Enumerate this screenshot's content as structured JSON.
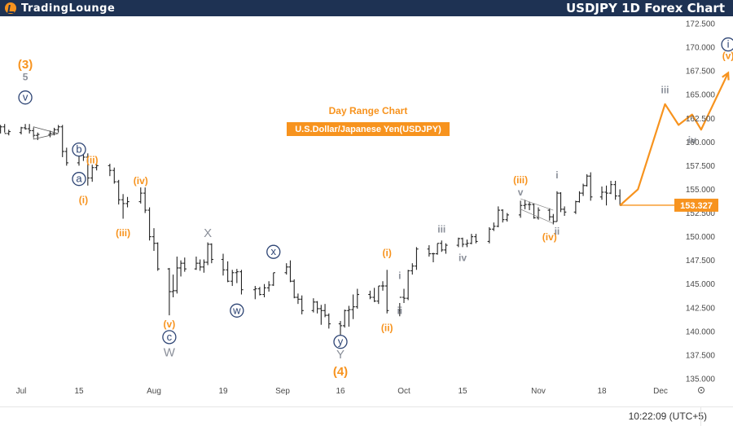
{
  "header": {
    "logo_text": "TradingLounge",
    "chart_title": "USDJPY 1D Forex Chart"
  },
  "footer": {
    "time": "10:22:09 (UTC+5)"
  },
  "annotations": {
    "range_label": "Day Range Chart",
    "symbol_label": "U.S.Dollar/Japanese Yen(USDJPY)"
  },
  "colors": {
    "orange": "#f7931e",
    "navy": "#2d4474",
    "gray": "#8a8f99",
    "bar": "#222222",
    "topbar": "#1e3253"
  },
  "chart_data": {
    "type": "candlestick-bar",
    "y_ticks": [
      135.0,
      137.5,
      140.0,
      142.5,
      145.0,
      147.5,
      150.0,
      152.5,
      155.0,
      157.5,
      160.0,
      162.5,
      165.0,
      167.5,
      170.0,
      172.5
    ],
    "y_tick_labels": [
      "135.000",
      "137.500",
      "140.000",
      "142.500",
      "145.000",
      "147.500",
      "150.000",
      "152.500",
      "155.000",
      "157.500",
      "160.000",
      "162.500",
      "165.000",
      "167.500",
      "170.000",
      "172.500"
    ],
    "ylim": [
      134.2,
      173.2
    ],
    "x_tick_labels": [
      "Jul",
      "15",
      "Aug",
      "19",
      "Sep",
      "16",
      "Oct",
      "15",
      "Nov",
      "18",
      "Dec"
    ],
    "x_tick_dates": [
      "2024-07-01",
      "2024-07-15",
      "2024-08-01",
      "2024-08-19",
      "2024-09-01",
      "2024-09-16",
      "2024-10-01",
      "2024-10-15",
      "2024-11-01",
      "2024-11-18",
      "2024-12-01"
    ],
    "current_price": 153.327,
    "current_price_label": "153.327",
    "prices": [
      {
        "d": "2024-06-24",
        "o": 160.8,
        "h": 161.2,
        "l": 160.4,
        "c": 160.9
      },
      {
        "d": "2024-06-25",
        "o": 160.9,
        "h": 161.4,
        "l": 160.6,
        "c": 161.2
      },
      {
        "d": "2024-06-26",
        "o": 161.2,
        "h": 161.8,
        "l": 160.9,
        "c": 161.6
      },
      {
        "d": "2024-06-27",
        "o": 161.6,
        "h": 161.9,
        "l": 161.0,
        "c": 160.9
      },
      {
        "d": "2024-06-28",
        "o": 160.9,
        "h": 161.3,
        "l": 160.7,
        "c": 161.1
      },
      {
        "d": "2024-07-01",
        "o": 161.0,
        "h": 161.6,
        "l": 160.8,
        "c": 161.5
      },
      {
        "d": "2024-07-02",
        "o": 161.5,
        "h": 161.9,
        "l": 161.3,
        "c": 161.4
      },
      {
        "d": "2024-07-03",
        "o": 161.4,
        "h": 161.9,
        "l": 160.9,
        "c": 161.2
      },
      {
        "d": "2024-07-04",
        "o": 161.2,
        "h": 161.5,
        "l": 160.5,
        "c": 160.7
      },
      {
        "d": "2024-07-05",
        "o": 160.7,
        "h": 161.0,
        "l": 160.2,
        "c": 160.8
      },
      {
        "d": "2024-07-08",
        "o": 160.8,
        "h": 161.2,
        "l": 160.5,
        "c": 160.9
      },
      {
        "d": "2024-07-09",
        "o": 160.9,
        "h": 161.5,
        "l": 160.7,
        "c": 161.3
      },
      {
        "d": "2024-07-10",
        "o": 161.3,
        "h": 161.8,
        "l": 161.0,
        "c": 161.6
      },
      {
        "d": "2024-07-11",
        "o": 161.6,
        "h": 161.8,
        "l": 158.4,
        "c": 159.0
      },
      {
        "d": "2024-07-12",
        "o": 159.0,
        "h": 159.4,
        "l": 157.5,
        "c": 157.8
      },
      {
        "d": "2024-07-15",
        "o": 157.8,
        "h": 158.9,
        "l": 157.5,
        "c": 158.7
      },
      {
        "d": "2024-07-16",
        "o": 158.7,
        "h": 159.0,
        "l": 158.0,
        "c": 158.4
      },
      {
        "d": "2024-07-17",
        "o": 158.4,
        "h": 158.8,
        "l": 155.4,
        "c": 156.2
      },
      {
        "d": "2024-07-18",
        "o": 156.2,
        "h": 157.6,
        "l": 155.8,
        "c": 157.3
      },
      {
        "d": "2024-07-19",
        "o": 157.3,
        "h": 157.8,
        "l": 157.0,
        "c": 157.5
      },
      {
        "d": "2024-07-22",
        "o": 157.5,
        "h": 157.7,
        "l": 156.4,
        "c": 157.0
      },
      {
        "d": "2024-07-23",
        "o": 157.0,
        "h": 157.3,
        "l": 155.6,
        "c": 155.8
      },
      {
        "d": "2024-07-24",
        "o": 155.8,
        "h": 156.0,
        "l": 153.4,
        "c": 153.9
      },
      {
        "d": "2024-07-25",
        "o": 153.9,
        "h": 154.5,
        "l": 151.9,
        "c": 153.5
      },
      {
        "d": "2024-07-26",
        "o": 153.5,
        "h": 154.2,
        "l": 153.1,
        "c": 153.7
      },
      {
        "d": "2024-07-29",
        "o": 153.7,
        "h": 155.2,
        "l": 153.5,
        "c": 154.6
      },
      {
        "d": "2024-07-30",
        "o": 154.6,
        "h": 155.2,
        "l": 152.5,
        "c": 152.8
      },
      {
        "d": "2024-07-31",
        "o": 152.8,
        "h": 153.1,
        "l": 149.6,
        "c": 150.0
      },
      {
        "d": "2024-08-01",
        "o": 150.0,
        "h": 150.9,
        "l": 148.5,
        "c": 149.3
      },
      {
        "d": "2024-08-02",
        "o": 149.3,
        "h": 149.4,
        "l": 146.4,
        "c": 146.6
      },
      {
        "d": "2024-08-05",
        "o": 146.6,
        "h": 146.7,
        "l": 141.7,
        "c": 144.2
      },
      {
        "d": "2024-08-06",
        "o": 144.2,
        "h": 146.0,
        "l": 143.6,
        "c": 144.3
      },
      {
        "d": "2024-08-07",
        "o": 144.3,
        "h": 147.9,
        "l": 144.0,
        "c": 146.7
      },
      {
        "d": "2024-08-08",
        "o": 146.7,
        "h": 147.5,
        "l": 145.8,
        "c": 147.2
      },
      {
        "d": "2024-08-09",
        "o": 147.2,
        "h": 147.8,
        "l": 146.3,
        "c": 146.6
      },
      {
        "d": "2024-08-12",
        "o": 146.6,
        "h": 147.9,
        "l": 146.5,
        "c": 147.2
      },
      {
        "d": "2024-08-13",
        "o": 147.2,
        "h": 147.6,
        "l": 146.4,
        "c": 146.8
      },
      {
        "d": "2024-08-14",
        "o": 146.8,
        "h": 147.6,
        "l": 146.2,
        "c": 147.3
      },
      {
        "d": "2024-08-15",
        "o": 147.3,
        "h": 149.4,
        "l": 147.0,
        "c": 149.2
      },
      {
        "d": "2024-08-16",
        "o": 149.2,
        "h": 149.3,
        "l": 147.2,
        "c": 147.6
      },
      {
        "d": "2024-08-19",
        "o": 147.6,
        "h": 148.2,
        "l": 145.9,
        "c": 146.5
      },
      {
        "d": "2024-08-20",
        "o": 146.5,
        "h": 147.4,
        "l": 145.2,
        "c": 145.3
      },
      {
        "d": "2024-08-21",
        "o": 145.3,
        "h": 146.5,
        "l": 144.8,
        "c": 146.2
      },
      {
        "d": "2024-08-22",
        "o": 146.2,
        "h": 146.6,
        "l": 145.1,
        "c": 146.3
      },
      {
        "d": "2024-08-23",
        "o": 146.3,
        "h": 146.5,
        "l": 143.9,
        "c": 144.4
      },
      {
        "d": "2024-08-26",
        "o": 144.4,
        "h": 144.8,
        "l": 143.4,
        "c": 144.5
      },
      {
        "d": "2024-08-27",
        "o": 144.5,
        "h": 144.7,
        "l": 143.8,
        "c": 143.9
      },
      {
        "d": "2024-08-28",
        "o": 143.9,
        "h": 145.0,
        "l": 143.6,
        "c": 144.6
      },
      {
        "d": "2024-08-29",
        "o": 144.6,
        "h": 145.3,
        "l": 144.2,
        "c": 144.9
      },
      {
        "d": "2024-08-30",
        "o": 144.9,
        "h": 146.2,
        "l": 144.8,
        "c": 146.2
      },
      {
        "d": "2024-09-02",
        "o": 146.2,
        "h": 147.2,
        "l": 146.0,
        "c": 146.8
      },
      {
        "d": "2024-09-03",
        "o": 146.8,
        "h": 147.5,
        "l": 145.2,
        "c": 145.3
      },
      {
        "d": "2024-09-04",
        "o": 145.3,
        "h": 145.5,
        "l": 143.5,
        "c": 143.6
      },
      {
        "d": "2024-09-05",
        "o": 143.6,
        "h": 144.0,
        "l": 142.9,
        "c": 143.4
      },
      {
        "d": "2024-09-06",
        "o": 143.4,
        "h": 143.8,
        "l": 141.8,
        "c": 142.2
      },
      {
        "d": "2024-09-09",
        "o": 142.2,
        "h": 143.5,
        "l": 142.0,
        "c": 143.1
      },
      {
        "d": "2024-09-10",
        "o": 143.1,
        "h": 143.2,
        "l": 141.9,
        "c": 142.4
      },
      {
        "d": "2024-09-11",
        "o": 142.4,
        "h": 142.8,
        "l": 140.7,
        "c": 142.2
      },
      {
        "d": "2024-09-12",
        "o": 142.2,
        "h": 142.9,
        "l": 141.5,
        "c": 141.7
      },
      {
        "d": "2024-09-13",
        "o": 141.7,
        "h": 141.9,
        "l": 140.3,
        "c": 140.8
      },
      {
        "d": "2024-09-16",
        "o": 140.8,
        "h": 141.1,
        "l": 139.6,
        "c": 140.6
      },
      {
        "d": "2024-09-17",
        "o": 140.6,
        "h": 142.3,
        "l": 140.4,
        "c": 142.2
      },
      {
        "d": "2024-09-18",
        "o": 142.2,
        "h": 142.7,
        "l": 140.5,
        "c": 142.3
      },
      {
        "d": "2024-09-19",
        "o": 142.3,
        "h": 143.9,
        "l": 141.3,
        "c": 142.6
      },
      {
        "d": "2024-09-20",
        "o": 142.6,
        "h": 144.5,
        "l": 142.4,
        "c": 143.9
      },
      {
        "d": "2024-09-23",
        "o": 143.9,
        "h": 144.3,
        "l": 143.4,
        "c": 143.6
      },
      {
        "d": "2024-09-24",
        "o": 143.6,
        "h": 144.6,
        "l": 143.1,
        "c": 143.2
      },
      {
        "d": "2024-09-25",
        "o": 143.2,
        "h": 144.8,
        "l": 142.9,
        "c": 144.8
      },
      {
        "d": "2024-09-26",
        "o": 144.8,
        "h": 145.3,
        "l": 144.3,
        "c": 144.8
      },
      {
        "d": "2024-09-27",
        "o": 144.8,
        "h": 146.5,
        "l": 141.9,
        "c": 142.2
      },
      {
        "d": "2024-09-30",
        "o": 142.2,
        "h": 143.0,
        "l": 141.6,
        "c": 143.6
      },
      {
        "d": "2024-10-01",
        "o": 143.6,
        "h": 144.5,
        "l": 143.0,
        "c": 143.5
      },
      {
        "d": "2024-10-02",
        "o": 143.5,
        "h": 146.5,
        "l": 143.3,
        "c": 146.4
      },
      {
        "d": "2024-10-03",
        "o": 146.4,
        "h": 147.2,
        "l": 146.0,
        "c": 146.9
      },
      {
        "d": "2024-10-04",
        "o": 146.9,
        "h": 148.9,
        "l": 146.5,
        "c": 148.7
      },
      {
        "d": "2024-10-07",
        "o": 148.7,
        "h": 149.1,
        "l": 147.9,
        "c": 148.2
      },
      {
        "d": "2024-10-08",
        "o": 148.2,
        "h": 148.3,
        "l": 147.3,
        "c": 148.2
      },
      {
        "d": "2024-10-09",
        "o": 148.2,
        "h": 149.3,
        "l": 148.1,
        "c": 149.3
      },
      {
        "d": "2024-10-10",
        "o": 149.3,
        "h": 149.6,
        "l": 148.4,
        "c": 148.6
      },
      {
        "d": "2024-10-11",
        "o": 148.6,
        "h": 149.3,
        "l": 148.2,
        "c": 149.1
      },
      {
        "d": "2024-10-14",
        "o": 149.1,
        "h": 149.9,
        "l": 148.9,
        "c": 149.8
      },
      {
        "d": "2024-10-15",
        "o": 149.8,
        "h": 149.9,
        "l": 148.9,
        "c": 149.2
      },
      {
        "d": "2024-10-16",
        "o": 149.2,
        "h": 149.7,
        "l": 148.9,
        "c": 149.3
      },
      {
        "d": "2024-10-17",
        "o": 149.3,
        "h": 150.3,
        "l": 149.2,
        "c": 150.0
      },
      {
        "d": "2024-10-18",
        "o": 150.0,
        "h": 150.3,
        "l": 149.3,
        "c": 149.5
      },
      {
        "d": "2024-10-21",
        "o": 149.5,
        "h": 151.0,
        "l": 149.3,
        "c": 150.8
      },
      {
        "d": "2024-10-22",
        "o": 150.8,
        "h": 151.5,
        "l": 150.6,
        "c": 151.1
      },
      {
        "d": "2024-10-23",
        "o": 151.1,
        "h": 153.2,
        "l": 151.0,
        "c": 152.8
      },
      {
        "d": "2024-10-24",
        "o": 152.8,
        "h": 152.9,
        "l": 151.5,
        "c": 151.8
      },
      {
        "d": "2024-10-25",
        "o": 151.8,
        "h": 152.5,
        "l": 151.6,
        "c": 152.3
      },
      {
        "d": "2024-10-28",
        "o": 152.3,
        "h": 153.8,
        "l": 152.0,
        "c": 153.3
      },
      {
        "d": "2024-10-29",
        "o": 153.3,
        "h": 153.9,
        "l": 152.9,
        "c": 153.4
      },
      {
        "d": "2024-10-30",
        "o": 153.4,
        "h": 153.7,
        "l": 152.8,
        "c": 153.4
      },
      {
        "d": "2024-10-31",
        "o": 153.4,
        "h": 153.5,
        "l": 151.9,
        "c": 152.0
      },
      {
        "d": "2024-11-01",
        "o": 152.0,
        "h": 153.1,
        "l": 151.8,
        "c": 152.8
      },
      {
        "d": "2024-11-04",
        "o": 152.8,
        "h": 153.0,
        "l": 151.7,
        "c": 152.1
      },
      {
        "d": "2024-11-05",
        "o": 152.1,
        "h": 152.4,
        "l": 151.3,
        "c": 151.6
      },
      {
        "d": "2024-11-06",
        "o": 151.6,
        "h": 154.8,
        "l": 151.6,
        "c": 154.6
      },
      {
        "d": "2024-11-07",
        "o": 154.6,
        "h": 154.7,
        "l": 152.6,
        "c": 152.9
      },
      {
        "d": "2024-11-08",
        "o": 152.9,
        "h": 153.2,
        "l": 152.2,
        "c": 152.6
      },
      {
        "d": "2024-11-11",
        "o": 152.6,
        "h": 153.8,
        "l": 152.4,
        "c": 153.7
      },
      {
        "d": "2024-11-12",
        "o": 153.7,
        "h": 154.8,
        "l": 153.6,
        "c": 154.6
      },
      {
        "d": "2024-11-13",
        "o": 154.6,
        "h": 155.6,
        "l": 154.3,
        "c": 155.4
      },
      {
        "d": "2024-11-14",
        "o": 155.4,
        "h": 156.6,
        "l": 155.3,
        "c": 156.4
      },
      {
        "d": "2024-11-15",
        "o": 156.4,
        "h": 156.8,
        "l": 153.8,
        "c": 154.2
      },
      {
        "d": "2024-11-18",
        "o": 154.2,
        "h": 155.3,
        "l": 153.9,
        "c": 154.7
      },
      {
        "d": "2024-11-19",
        "o": 154.7,
        "h": 155.4,
        "l": 153.3,
        "c": 154.6
      },
      {
        "d": "2024-11-20",
        "o": 154.6,
        "h": 155.9,
        "l": 154.5,
        "c": 155.5
      },
      {
        "d": "2024-11-21",
        "o": 155.5,
        "h": 155.9,
        "l": 153.9,
        "c": 154.3
      },
      {
        "d": "2024-11-22",
        "o": 154.3,
        "h": 155.0,
        "l": 153.3,
        "c": 153.3
      }
    ],
    "projection": [
      {
        "d": "2024-11-22",
        "y": 153.3
      },
      {
        "d": "2024-11-26",
        "y": 155.0
      },
      {
        "d": "2024-12-02",
        "y": 164.0
      },
      {
        "d": "2024-12-05",
        "y": 161.8
      },
      {
        "d": "2024-12-08",
        "y": 162.9
      },
      {
        "d": "2024-12-10",
        "y": 161.3
      },
      {
        "d": "2024-12-16",
        "y": 167.3
      }
    ],
    "wave_labels": [
      {
        "text": "(3)",
        "d": "2024-07-02",
        "y": 168.2,
        "style": "orange-big"
      },
      {
        "text": "5",
        "d": "2024-07-02",
        "y": 166.9,
        "style": "gray"
      },
      {
        "text": "v",
        "d": "2024-07-02",
        "y": 164.7,
        "style": "circle-navy"
      },
      {
        "text": "b",
        "d": "2024-07-15",
        "y": 159.2,
        "style": "circle-navy"
      },
      {
        "text": "(ii)",
        "d": "2024-07-18",
        "y": 158.1,
        "style": "orange"
      },
      {
        "text": "a",
        "d": "2024-07-15",
        "y": 156.1,
        "style": "circle-navy"
      },
      {
        "text": "(iv)",
        "d": "2024-07-29",
        "y": 155.9,
        "style": "orange"
      },
      {
        "text": "(i)",
        "d": "2024-07-16",
        "y": 153.9,
        "style": "orange"
      },
      {
        "text": "(iii)",
        "d": "2024-07-25",
        "y": 150.4,
        "style": "orange"
      },
      {
        "text": "X",
        "d": "2024-08-15",
        "y": 150.4,
        "style": "gray-big"
      },
      {
        "text": "x",
        "d": "2024-08-30",
        "y": 148.4,
        "style": "circle-navy"
      },
      {
        "text": "w",
        "d": "2024-08-22",
        "y": 142.2,
        "style": "circle-navy"
      },
      {
        "text": "(v)",
        "d": "2024-08-05",
        "y": 140.8,
        "style": "orange"
      },
      {
        "text": "c",
        "d": "2024-08-05",
        "y": 139.4,
        "style": "circle-navy"
      },
      {
        "text": "W",
        "d": "2024-08-05",
        "y": 137.8,
        "style": "gray-big"
      },
      {
        "text": "y",
        "d": "2024-09-16",
        "y": 138.9,
        "style": "circle-navy"
      },
      {
        "text": "Y",
        "d": "2024-09-16",
        "y": 137.6,
        "style": "gray-big"
      },
      {
        "text": "(4)",
        "d": "2024-09-16",
        "y": 135.8,
        "style": "orange-big"
      },
      {
        "text": "(i)",
        "d": "2024-09-27",
        "y": 148.3,
        "style": "orange"
      },
      {
        "text": "i",
        "d": "2024-09-30",
        "y": 145.9,
        "style": "gray"
      },
      {
        "text": "ii",
        "d": "2024-09-30",
        "y": 142.2,
        "style": "gray"
      },
      {
        "text": "(ii)",
        "d": "2024-09-27",
        "y": 140.4,
        "style": "orange"
      },
      {
        "text": "iii",
        "d": "2024-10-10",
        "y": 150.8,
        "style": "gray"
      },
      {
        "text": "iv",
        "d": "2024-10-15",
        "y": 147.8,
        "style": "gray"
      },
      {
        "text": "(iii)",
        "d": "2024-10-28",
        "y": 156.0,
        "style": "orange"
      },
      {
        "text": "v",
        "d": "2024-10-28",
        "y": 154.7,
        "style": "gray"
      },
      {
        "text": "(iv)",
        "d": "2024-11-04",
        "y": 150.0,
        "style": "orange"
      },
      {
        "text": "ii",
        "d": "2024-11-06",
        "y": 150.6,
        "style": "gray"
      },
      {
        "text": "i",
        "d": "2024-11-06",
        "y": 156.5,
        "style": "gray"
      },
      {
        "text": "iii",
        "d": "2024-12-02",
        "y": 165.5,
        "style": "gray"
      },
      {
        "text": "iv",
        "d": "2024-12-08",
        "y": 160.2,
        "style": "gray"
      },
      {
        "text": "(v)",
        "d": "2024-12-16",
        "y": 169.1,
        "style": "orange"
      },
      {
        "text": "i",
        "d": "2024-12-16",
        "y": 170.3,
        "style": "circle-navy"
      }
    ]
  }
}
